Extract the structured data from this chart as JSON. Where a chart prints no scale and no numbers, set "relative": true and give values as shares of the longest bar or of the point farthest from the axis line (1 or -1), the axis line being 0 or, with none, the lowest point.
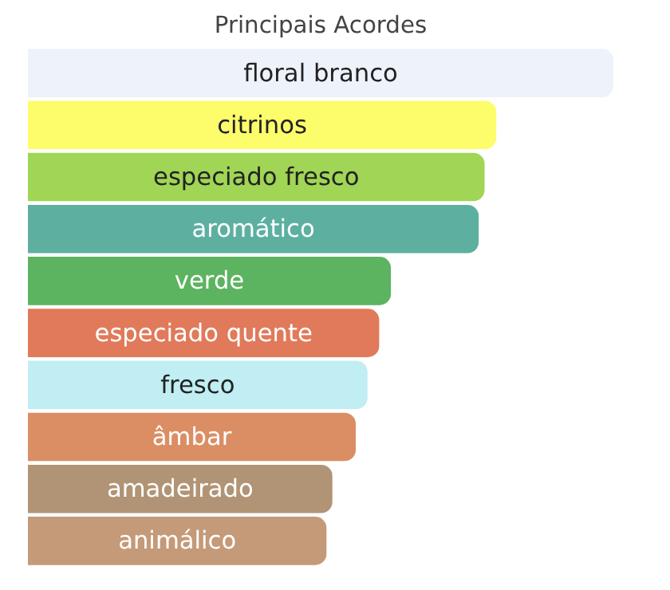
{
  "chart_data": {
    "type": "bar",
    "orientation": "horizontal",
    "relative": true,
    "title": "Principais Acordes",
    "categories": [
      "floral branco",
      "citrinos",
      "especiado fresco",
      "aromático",
      "verde",
      "especiado quente",
      "fresco",
      "âmbar",
      "amadeirado",
      "animálico"
    ],
    "values": [
      1,
      0.8,
      0.78,
      0.77,
      0.62,
      0.6,
      0.58,
      0.56,
      0.52,
      0.51
    ],
    "colors": [
      "#eef2fa",
      "#fdfd6c",
      "#a0d555",
      "#5db0a0",
      "#5cb360",
      "#e17a5a",
      "#c0eef2",
      "#db8e64",
      "#b09475",
      "#c49a78"
    ],
    "grid": false
  }
}
